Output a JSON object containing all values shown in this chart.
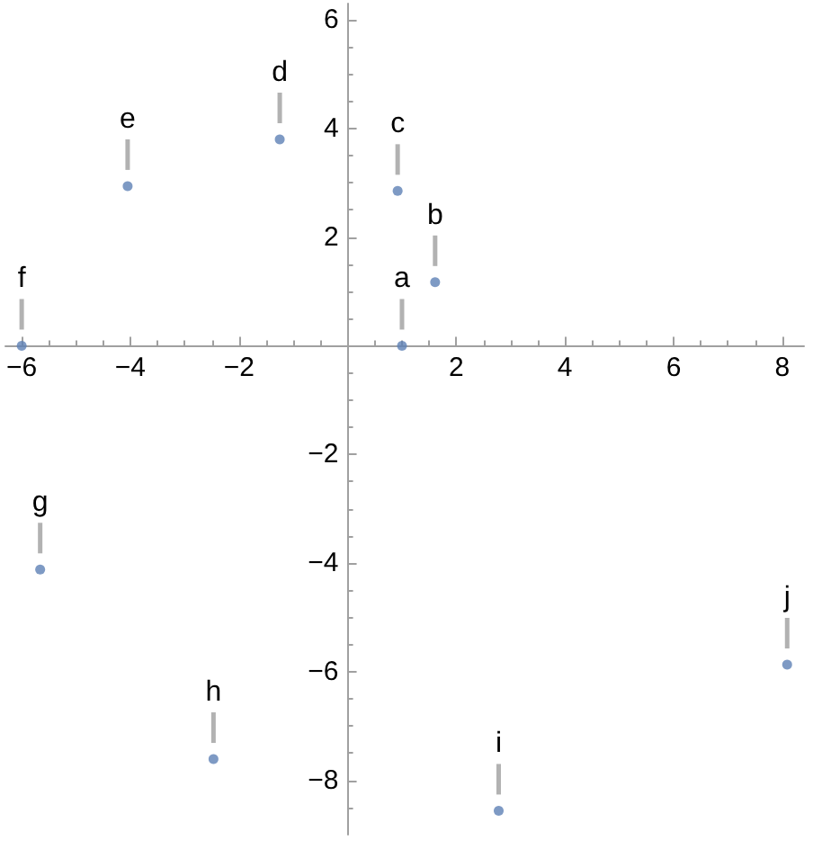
{
  "chart_data": {
    "type": "scatter",
    "x": [
      1.0,
      1.61,
      0.92,
      -1.25,
      -4.05,
      -6.0,
      -5.66,
      -2.47,
      2.78,
      8.09
    ],
    "values": [
      0,
      1.17,
      2.85,
      3.8,
      2.94,
      0,
      -4.12,
      -7.61,
      -8.56,
      -5.87
    ],
    "color": "#5e81b5",
    "marker": "circle",
    "xlim": [
      -6.3,
      8.4
    ],
    "ylim": [
      -9,
      6.3
    ],
    "xticks": [
      {
        "value": -6,
        "label": "−6"
      },
      {
        "value": -5.5,
        "label": null
      },
      {
        "value": -5,
        "label": null
      },
      {
        "value": -4.5,
        "label": null
      },
      {
        "value": -4,
        "label": "−4"
      },
      {
        "value": -3.5,
        "label": null
      },
      {
        "value": -3,
        "label": null
      },
      {
        "value": -2.5,
        "label": null
      },
      {
        "value": -2,
        "label": "−2"
      },
      {
        "value": -1.5,
        "label": null
      },
      {
        "value": -1,
        "label": null
      },
      {
        "value": -0.5,
        "label": null
      },
      {
        "value": 0.5,
        "label": null
      },
      {
        "value": 1,
        "label": null
      },
      {
        "value": 1.5,
        "label": null
      },
      2,
      {
        "value": 2.5,
        "label": null
      },
      {
        "value": 3,
        "label": null
      },
      {
        "value": 3.5,
        "label": null
      },
      4,
      {
        "value": 4.5,
        "label": null
      },
      {
        "value": 5,
        "label": null
      },
      {
        "value": 5.5,
        "label": null
      },
      6,
      {
        "value": 6.5,
        "label": null
      },
      {
        "value": 7,
        "label": null
      },
      {
        "value": 7.5,
        "label": null
      },
      8
    ],
    "yticks": [
      {
        "value": -8.5,
        "label": null
      },
      {
        "value": -8,
        "label": "−8"
      },
      {
        "value": -7.5,
        "label": null
      },
      {
        "value": -7,
        "label": null
      },
      {
        "value": -6.5,
        "label": null
      },
      {
        "value": -6,
        "label": "−6"
      },
      {
        "value": -5.5,
        "label": null
      },
      {
        "value": -5,
        "label": null
      },
      {
        "value": -4.5,
        "label": null
      },
      {
        "value": -4,
        "label": "−4"
      },
      {
        "value": -3.5,
        "label": null
      },
      {
        "value": -3,
        "label": null
      },
      {
        "value": -2.5,
        "label": null
      },
      {
        "value": -2,
        "label": "−2"
      },
      {
        "value": -1.5,
        "label": null
      },
      {
        "value": -1,
        "label": null
      },
      {
        "value": -0.5,
        "label": null
      },
      {
        "value": 0.5,
        "label": null
      },
      {
        "value": 1,
        "label": null
      },
      {
        "value": 1.5,
        "label": null
      },
      2,
      {
        "value": 2.5,
        "label": null
      },
      {
        "value": 3,
        "label": null
      },
      {
        "value": 3.5,
        "label": null
      },
      4,
      {
        "value": 4.5,
        "label": null
      },
      {
        "value": 5,
        "label": null
      },
      {
        "value": 5.5,
        "label": null
      },
      6
    ],
    "annotations": [
      {
        "text": "a",
        "x": 1.0,
        "y": 0
      },
      {
        "text": "b",
        "x": 1.61,
        "y": 1.17
      },
      {
        "text": "c",
        "x": 0.92,
        "y": 2.85
      },
      {
        "text": "d",
        "x": -1.25,
        "y": 3.8
      },
      {
        "text": "e",
        "x": -4.05,
        "y": 2.94
      },
      {
        "text": "f",
        "x": -6.0,
        "y": 0
      },
      {
        "text": "g",
        "x": -5.66,
        "y": -4.12
      },
      {
        "text": "h",
        "x": -2.47,
        "y": -7.61
      },
      {
        "text": "i",
        "x": 2.78,
        "y": -8.56
      },
      {
        "text": "j",
        "x": 8.09,
        "y": -5.87
      }
    ]
  }
}
